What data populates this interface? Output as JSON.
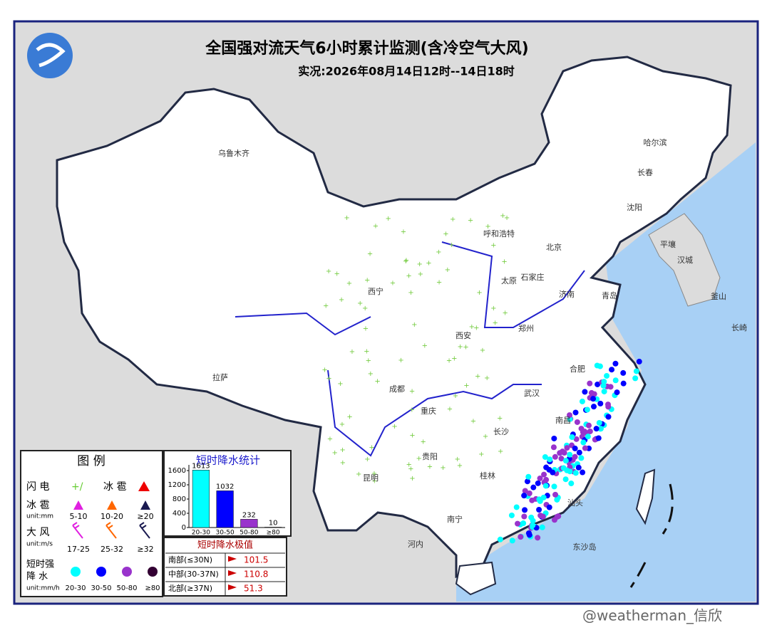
{
  "header": {
    "title": "全国强对流天气6小时累计监测(含冷空气大风)",
    "subtitle": "实况:2026年08月14日12时--14日18时"
  },
  "cities": [
    "乌鲁木齐",
    "拉萨",
    "西宁",
    "西安",
    "成都",
    "重庆",
    "贵阳",
    "昆明",
    "长沙",
    "南宁",
    "桂林",
    "武汉",
    "南昌",
    "合肥",
    "郑州",
    "济南",
    "青岛",
    "太原",
    "石家庄",
    "北京",
    "呼和浩特",
    "沈阳",
    "长春",
    "哈尔滨",
    "平壤",
    "汉城",
    "釜山",
    "长崎",
    "东沙岛",
    "河内",
    "汕头"
  ],
  "legend": {
    "title": "图  例",
    "lightning": "闪  电",
    "hail": "冰  雹",
    "hail_row": {
      "label": "冰  雹",
      "unit": "unit:mm",
      "ranges": [
        "5-10",
        "10-20",
        "≥20"
      ]
    },
    "wind_row": {
      "label": "大  风",
      "unit": "unit:m/s",
      "ranges": [
        "17-25",
        "25-32",
        "≥32"
      ]
    },
    "rain_row": {
      "label_lines": [
        "短时强",
        "降  水"
      ],
      "unit": "unit:mm/h",
      "ranges": [
        "20-30",
        "30-50",
        "50-80",
        "≥80"
      ]
    }
  },
  "stats_chart": {
    "type": "bar",
    "title": "短时降水统计",
    "categories": [
      "20-30",
      "30-50",
      "50-80",
      "≥80"
    ],
    "values": [
      1613,
      1032,
      232,
      10
    ],
    "colors": [
      "#00ffff",
      "#0000ff",
      "#9933cc",
      "#330033"
    ],
    "ylim": [
      0,
      1600
    ],
    "yticks": [
      0,
      400,
      800,
      1200,
      1600
    ]
  },
  "extremes": {
    "title": "短时降水极值",
    "rows": [
      {
        "region": "南部(≤30N)",
        "value": 101.5
      },
      {
        "region": "中部(30-37N)",
        "value": 110.8
      },
      {
        "region": "北部(≥37N)",
        "value": 51.3
      }
    ]
  },
  "watermark": "@weatherman_信欣"
}
